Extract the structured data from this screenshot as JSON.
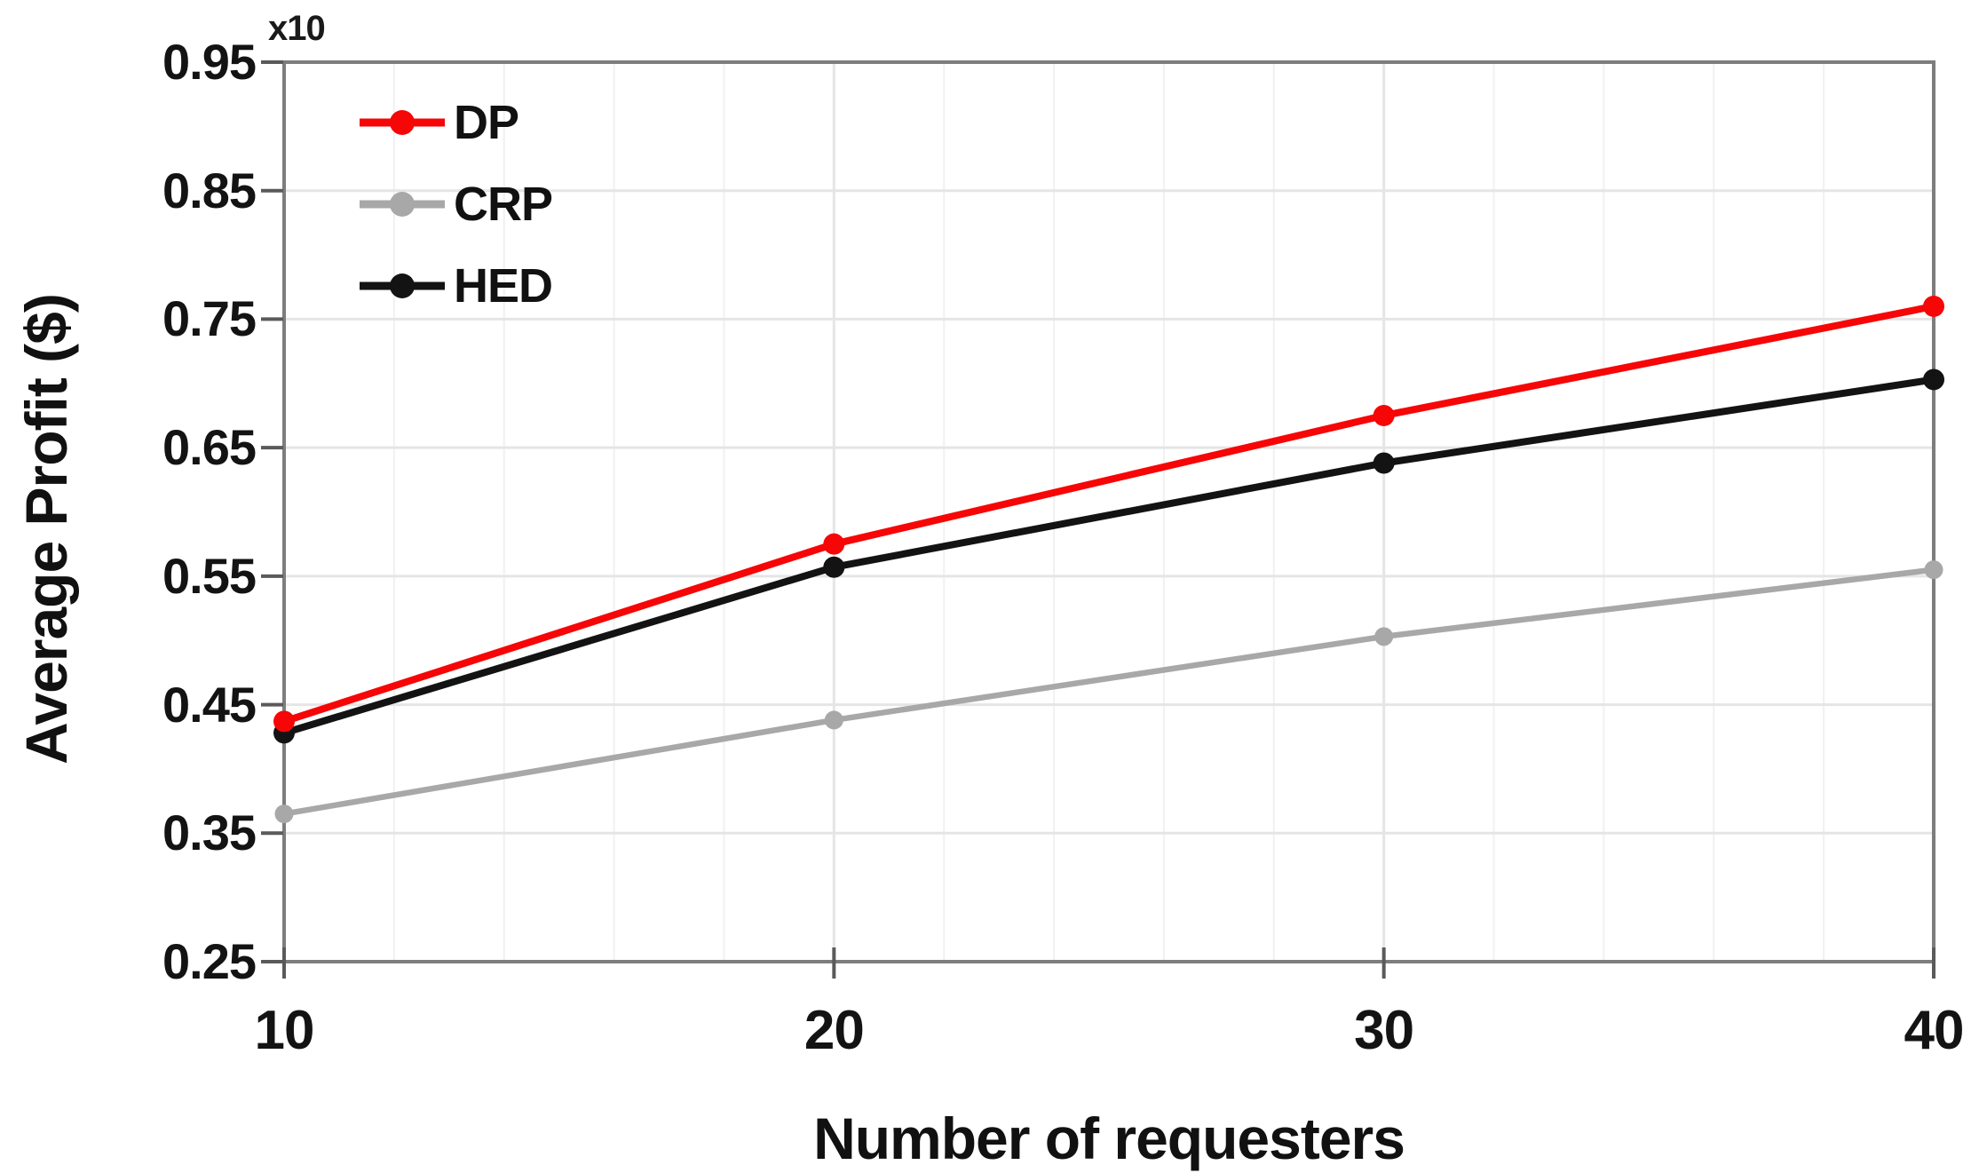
{
  "chart_data": {
    "type": "line",
    "title": "",
    "xlabel": "Number of requesters",
    "ylabel": "Average Profit ($)",
    "y_multiplier_label": "x10",
    "x": [
      10,
      20,
      30,
      40
    ],
    "xticks": [
      "10",
      "20",
      "30",
      "40"
    ],
    "yticks": [
      "0.25",
      "0.35",
      "0.45",
      "0.55",
      "0.65",
      "0.75",
      "0.85",
      "0.95"
    ],
    "xlim": [
      10,
      40
    ],
    "ylim": [
      0.25,
      0.95
    ],
    "grid": {
      "horizontal_major_step": 0.1,
      "vertical_minor_step": 2,
      "visible": true
    },
    "legend_position": "top-left-inside",
    "legend_order": [
      "DP",
      "CRP",
      "HED"
    ],
    "series": [
      {
        "name": "DP",
        "color": "#f60606",
        "marker": "circle",
        "values": [
          0.437,
          0.575,
          0.675,
          0.76
        ]
      },
      {
        "name": "CRP",
        "color": "#a8a8a8",
        "marker": "circle",
        "values": [
          0.365,
          0.438,
          0.503,
          0.555
        ]
      },
      {
        "name": "HED",
        "color": "#131313",
        "marker": "circle",
        "values": [
          0.428,
          0.557,
          0.638,
          0.703
        ]
      }
    ]
  },
  "style_colors": {
    "background": "#ffffff",
    "axis_border": "#7d7d7d",
    "tick_mark": "#5a5a5a",
    "grid_major": "#e5e5e5",
    "grid_minor": "#f1f1f1",
    "text": "#131313"
  }
}
